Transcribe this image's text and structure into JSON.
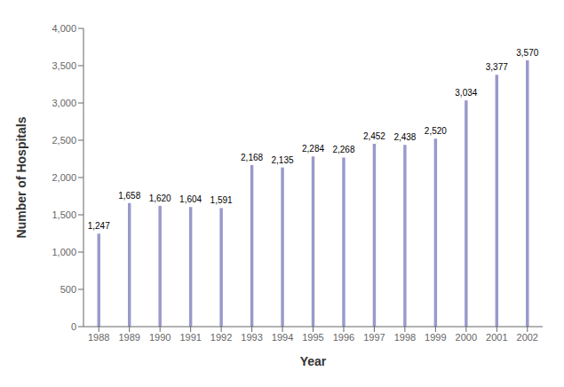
{
  "chart_data": {
    "type": "bar",
    "xlabel": "Year",
    "ylabel": "Number of Hospitals",
    "categories": [
      "1988",
      "1989",
      "1990",
      "1991",
      "1992",
      "1993",
      "1994",
      "1995",
      "1996",
      "1997",
      "1998",
      "1999",
      "2000",
      "2001",
      "2002"
    ],
    "values": [
      1247,
      1658,
      1620,
      1604,
      1591,
      2168,
      2135,
      2284,
      2268,
      2452,
      2438,
      2520,
      3034,
      3377,
      3570
    ],
    "value_labels": [
      "1,247",
      "1,658",
      "1,620",
      "1,604",
      "1,591",
      "2,168",
      "2,135",
      "2,284",
      "2,268",
      "2,452",
      "2,438",
      "2,520",
      "3,034",
      "3,377",
      "3,570"
    ],
    "data_labels": true,
    "color": "#9999cc",
    "ylim": [
      0,
      4000
    ],
    "yticks": [
      0,
      500,
      {
        "value": 1000,
        "label": "1,000"
      },
      {
        "value": 1500,
        "label": "1,500"
      },
      {
        "value": 2000,
        "label": "2,000"
      },
      {
        "value": 2500,
        "label": "2,500"
      },
      {
        "value": 3000,
        "label": "3,000"
      },
      {
        "value": 3500,
        "label": "3,500"
      },
      {
        "value": 4000,
        "label": "4,000"
      }
    ],
    "grid": false
  }
}
